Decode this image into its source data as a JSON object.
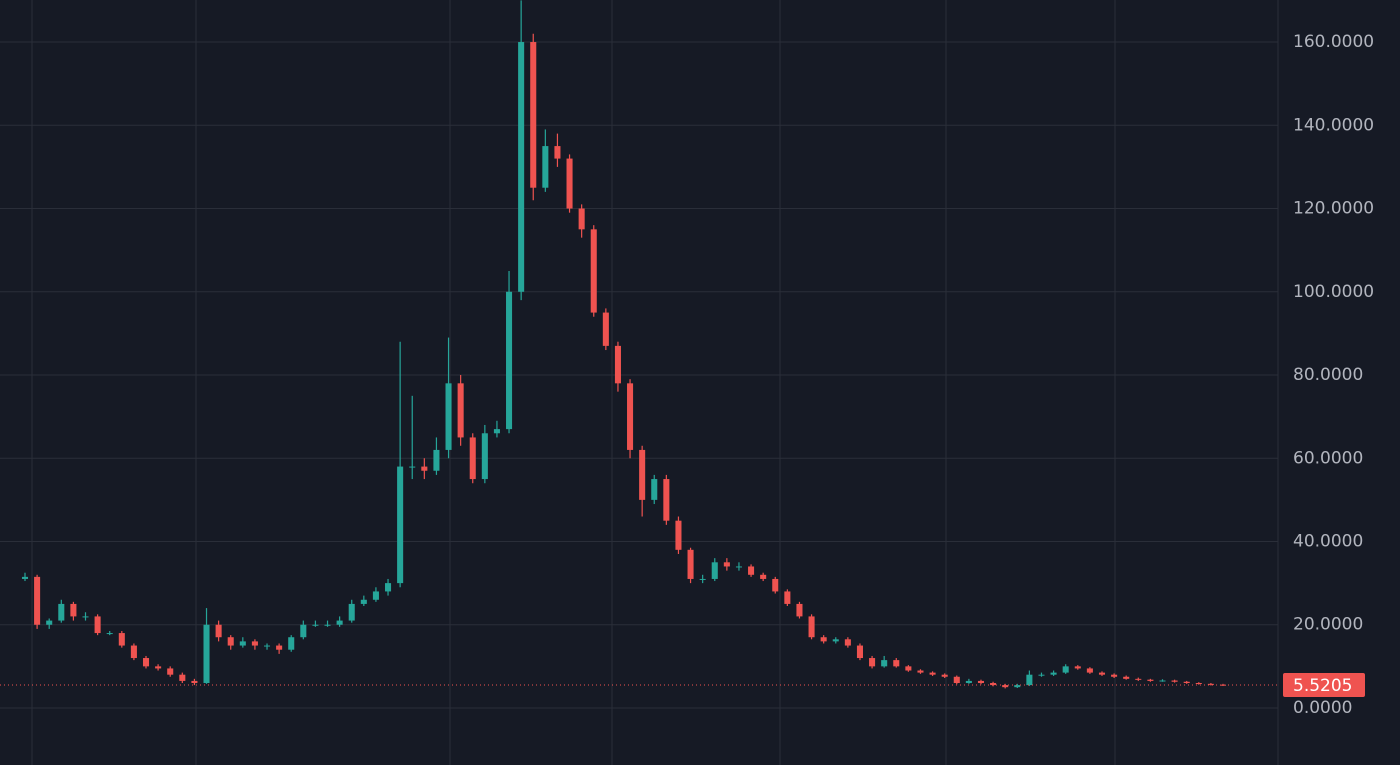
{
  "chart_data": {
    "type": "candlestick",
    "open": [
      31,
      31.5,
      20,
      21,
      25,
      22,
      22,
      18,
      18,
      15,
      12,
      10,
      9.5,
      8,
      6.5,
      6,
      20,
      17,
      15,
      16,
      15,
      15,
      14,
      17,
      20,
      20,
      20,
      21,
      25,
      26,
      28,
      30,
      58,
      58,
      57,
      62,
      78,
      65,
      55,
      66,
      67,
      100,
      160,
      125,
      135,
      132,
      120,
      115,
      95,
      87,
      78,
      62,
      50,
      55,
      45,
      38,
      31,
      31,
      35,
      34,
      34,
      32,
      31,
      28,
      25,
      22,
      17,
      16,
      16.5,
      15,
      12,
      10,
      11.5,
      10,
      9,
      8.5,
      8,
      7.5,
      6,
      6.5,
      6,
      5.5,
      5,
      5.5,
      8,
      8,
      8.5,
      10,
      9.5,
      8.5,
      8,
      7.5,
      7,
      6.8,
      6.5,
      6.6,
      6.3,
      6,
      5.8,
      5.6
    ],
    "high": [
      32.5,
      32,
      21.5,
      26,
      25.5,
      23,
      22.5,
      18.5,
      18.5,
      15.5,
      12.5,
      10.5,
      10,
      8.5,
      7,
      24,
      21,
      17.5,
      17,
      16.5,
      15.5,
      15.5,
      17.5,
      21,
      21,
      21,
      22,
      26,
      27,
      29,
      31,
      88,
      75,
      60,
      65,
      89,
      80,
      66,
      68,
      69,
      105,
      170,
      162,
      139,
      138,
      133,
      121,
      116,
      96,
      88,
      79,
      63,
      56,
      56,
      46,
      38.5,
      32,
      36,
      36,
      35,
      34.5,
      32.5,
      31.5,
      28.5,
      25.5,
      22.5,
      17.5,
      17,
      17,
      15.5,
      12.5,
      12.5,
      12,
      10.3,
      9.3,
      8.8,
      8.3,
      7.8,
      7,
      6.8,
      6.3,
      5.8,
      5.8,
      9,
      8.5,
      9,
      10.5,
      10.3,
      9.8,
      8.8,
      8.3,
      7.8,
      7.3,
      7,
      6.9,
      6.8,
      6.5,
      6.2,
      6,
      5.8
    ],
    "low": [
      30.5,
      19,
      19,
      20.5,
      21,
      21,
      17.5,
      17.5,
      14.5,
      11.5,
      9.5,
      9,
      7.5,
      6,
      5.5,
      5.8,
      16,
      14,
      14.5,
      14,
      14,
      13,
      13.5,
      16.5,
      19.5,
      19.5,
      19.5,
      20.5,
      24.5,
      25.5,
      27,
      29,
      55,
      55,
      56,
      60,
      63,
      54,
      54,
      65,
      66,
      98,
      122,
      124,
      130,
      119,
      113,
      94,
      86,
      76,
      60,
      46,
      49,
      44,
      37,
      30,
      30,
      30.5,
      33,
      33,
      31.5,
      30.5,
      27.5,
      24.5,
      21.5,
      16.5,
      15.5,
      15.5,
      14.5,
      11.5,
      9.5,
      9.7,
      9.7,
      8.7,
      8.2,
      7.7,
      7.2,
      5.7,
      5.8,
      5.7,
      5.2,
      4.7,
      4.8,
      5.3,
      7.5,
      7.7,
      8.2,
      9.2,
      8.2,
      7.7,
      7.2,
      6.8,
      6.5,
      6.3,
      6.3,
      6.1,
      5.8,
      5.6,
      5.4,
      5.3
    ],
    "close": [
      31.5,
      20,
      21,
      25,
      22,
      22,
      18,
      18,
      15,
      12,
      10,
      9.5,
      8,
      6.5,
      6,
      20,
      17,
      15,
      16,
      15,
      15,
      14,
      17,
      20,
      20,
      20,
      21,
      25,
      26,
      28,
      30,
      58,
      58,
      57,
      62,
      78,
      65,
      55,
      66,
      67,
      100,
      160,
      125,
      135,
      132,
      120,
      115,
      95,
      87,
      78,
      62,
      50,
      55,
      45,
      38,
      31,
      31,
      35,
      34,
      34,
      32,
      31,
      28,
      25,
      22,
      17,
      16,
      16.5,
      15,
      12,
      10,
      11.5,
      10,
      9,
      8.5,
      8,
      7.5,
      6,
      6.5,
      6,
      5.5,
      5,
      5.5,
      8,
      8,
      8.5,
      10,
      9.5,
      8.5,
      8,
      7.5,
      7,
      6.8,
      6.5,
      6.6,
      6.3,
      6,
      5.8,
      5.6,
      5.5205
    ],
    "up_color": "#26a69a",
    "down_color": "#ef5350",
    "last_price": 5.5205,
    "ylim": [
      -13.7,
      170.1
    ],
    "yticks": [
      {
        "value": 0,
        "label": "0.0000"
      },
      {
        "value": 20,
        "label": "20.0000"
      },
      {
        "value": 40,
        "label": "40.0000"
      },
      {
        "value": 60,
        "label": "60.0000"
      },
      {
        "value": 80,
        "label": "80.0000"
      },
      {
        "value": 100,
        "label": "100.0000"
      },
      {
        "value": 120,
        "label": "120.0000"
      },
      {
        "value": 140,
        "label": "140.0000"
      },
      {
        "value": 160,
        "label": "160.0000"
      }
    ],
    "grid": true
  }
}
